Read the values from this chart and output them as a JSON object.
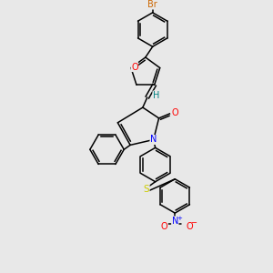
{
  "bg_color": "#e8e8e8",
  "bond_color": "#000000",
  "atom_colors": {
    "Br": "#cc6600",
    "O": "#ff0000",
    "N": "#0000ff",
    "S": "#cccc00",
    "H": "#008080",
    "C": "#000000"
  },
  "figsize": [
    3.0,
    3.0
  ],
  "dpi": 100
}
